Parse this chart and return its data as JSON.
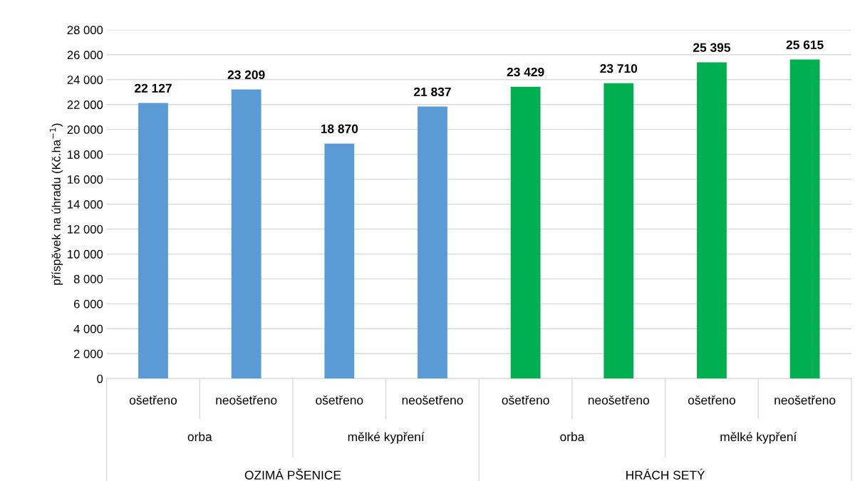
{
  "chart_data": {
    "type": "bar",
    "ylabel": "příspěvek na úhradu (Kč.ha$^{−1}$)",
    "categories": [
      "ošetřeno",
      "neošetřeno",
      "ošetřeno",
      "neošetřeno",
      "ošetřeno",
      "neošetřeno",
      "ošetřeno",
      "neošetřeno"
    ],
    "values": [
      22127,
      23209,
      18870,
      21837,
      23429,
      23710,
      25395,
      25615
    ],
    "colors": [
      "#5b9bd5",
      "#5b9bd5",
      "#5b9bd5",
      "#5b9bd5",
      "#00b050",
      "#00b050",
      "#00b050",
      "#00b050"
    ],
    "value_labels": [
      "22 127",
      "23 209",
      "18 870",
      "21 837",
      "23 429",
      "23 710",
      "25 395",
      "25 615"
    ],
    "ylim": [
      0,
      28000
    ],
    "yticks": [
      0,
      {
        "value": 2000,
        "label": "2 000"
      },
      {
        "value": 4000,
        "label": "4 000"
      },
      {
        "value": 6000,
        "label": "6 000"
      },
      {
        "value": 8000,
        "label": "8 000"
      },
      {
        "value": 10000,
        "label": "10 000"
      },
      {
        "value": 12000,
        "label": "12 000"
      },
      {
        "value": 14000,
        "label": "14 000"
      },
      {
        "value": 16000,
        "label": "16 000"
      },
      {
        "value": 18000,
        "label": "18 000"
      },
      {
        "value": 20000,
        "label": "20 000"
      },
      {
        "value": 22000,
        "label": "22 000"
      },
      {
        "value": 24000,
        "label": "24 000"
      },
      {
        "value": 26000,
        "label": "26 000"
      },
      {
        "value": 28000,
        "label": "28 000"
      }
    ],
    "annotations": [
      "orba",
      "mělké kypření",
      "orba",
      "mělké kypření",
      "OZIMÁ PŠENICE",
      "HRÁCH SETÝ"
    ],
    "grid": "y",
    "legend": false
  }
}
